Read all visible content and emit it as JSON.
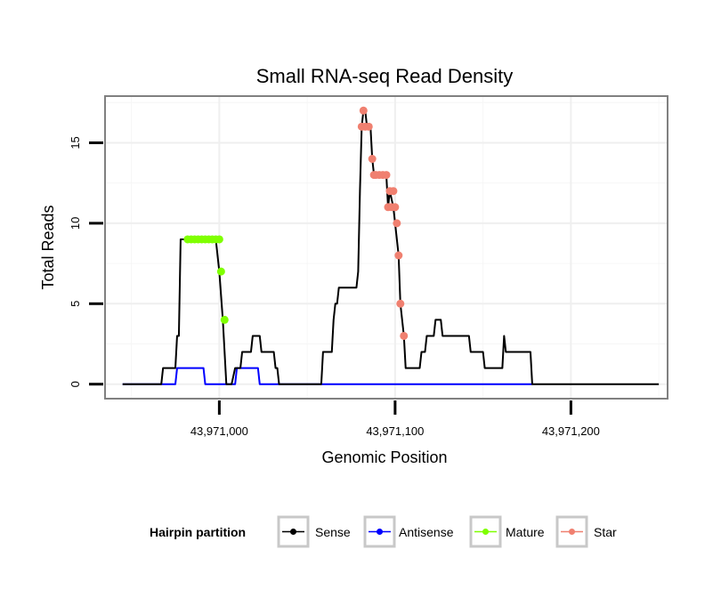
{
  "chart_data": {
    "type": "line",
    "title": "Small RNA-seq Read Density",
    "xlabel": "Genomic Position",
    "ylabel": "Total Reads",
    "xlim": [
      43970935,
      43971255
    ],
    "ylim": [
      -0.9,
      17.9
    ],
    "x_ticks": [
      {
        "value": 43971000,
        "label": "43,971,000"
      },
      {
        "value": 43971100,
        "label": "43,971,100"
      },
      {
        "value": 43971200,
        "label": "43,971,200"
      }
    ],
    "y_ticks": [
      {
        "value": 0,
        "label": "0"
      },
      {
        "value": 5,
        "label": "5"
      },
      {
        "value": 10,
        "label": "10"
      },
      {
        "value": 15,
        "label": "15"
      }
    ],
    "grid": true,
    "legend": {
      "title": "Hairpin partition",
      "position": "bottom",
      "entries": [
        {
          "name": "Sense",
          "color": "#000000"
        },
        {
          "name": "Antisense",
          "color": "#0000ff"
        },
        {
          "name": "Mature",
          "color": "#7fff00"
        },
        {
          "name": "Star",
          "color": "#f08070"
        }
      ]
    },
    "series": [
      {
        "name": "Sense",
        "color": "#000000",
        "points": [
          [
            43970945,
            0
          ],
          [
            43970967,
            0
          ],
          [
            43970968,
            1
          ],
          [
            43970975,
            1
          ],
          [
            43970976,
            3
          ],
          [
            43970977,
            3
          ],
          [
            43970978,
            9
          ],
          [
            43970998,
            9
          ],
          [
            43971000,
            7
          ],
          [
            43971002,
            4
          ],
          [
            43971004,
            0
          ],
          [
            43971007,
            0
          ],
          [
            43971009,
            1
          ],
          [
            43971012,
            1
          ],
          [
            43971013,
            2
          ],
          [
            43971018,
            2
          ],
          [
            43971019,
            3
          ],
          [
            43971023,
            3
          ],
          [
            43971024,
            2
          ],
          [
            43971031,
            2
          ],
          [
            43971032,
            1
          ],
          [
            43971033,
            1
          ],
          [
            43971034,
            0
          ],
          [
            43971058,
            0
          ],
          [
            43971059,
            2
          ],
          [
            43971064,
            2
          ],
          [
            43971065,
            4
          ],
          [
            43971066,
            5
          ],
          [
            43971067,
            5
          ],
          [
            43971068,
            6
          ],
          [
            43971078,
            6
          ],
          [
            43971079,
            7
          ],
          [
            43971080,
            12
          ],
          [
            43971081,
            16
          ],
          [
            43971082,
            17
          ],
          [
            43971083,
            17
          ],
          [
            43971084,
            16
          ],
          [
            43971086,
            16
          ],
          [
            43971087,
            14
          ],
          [
            43971088,
            13
          ],
          [
            43971095,
            13
          ],
          [
            43971096,
            11
          ],
          [
            43971097,
            12
          ],
          [
            43971099,
            11
          ],
          [
            43971100,
            10
          ],
          [
            43971102,
            8
          ],
          [
            43971103,
            5
          ],
          [
            43971105,
            3
          ],
          [
            43971106,
            1
          ],
          [
            43971114,
            1
          ],
          [
            43971115,
            2
          ],
          [
            43971117,
            2
          ],
          [
            43971118,
            3
          ],
          [
            43971122,
            3
          ],
          [
            43971123,
            4
          ],
          [
            43971126,
            4
          ],
          [
            43971127,
            3
          ],
          [
            43971142,
            3
          ],
          [
            43971143,
            2
          ],
          [
            43971150,
            2
          ],
          [
            43971151,
            1
          ],
          [
            43971161,
            1
          ],
          [
            43971162,
            3
          ],
          [
            43971163,
            2
          ],
          [
            43971177,
            2
          ],
          [
            43971178,
            0
          ],
          [
            43971250,
            0
          ]
        ]
      },
      {
        "name": "Antisense",
        "color": "#0000ff",
        "points": [
          [
            43970945,
            0
          ],
          [
            43970975,
            0
          ],
          [
            43970976,
            1
          ],
          [
            43970991,
            1
          ],
          [
            43970992,
            0
          ],
          [
            43971009,
            0
          ],
          [
            43971010,
            1
          ],
          [
            43971022,
            1
          ],
          [
            43971023,
            0
          ],
          [
            43971178,
            0
          ]
        ]
      },
      {
        "name": "Mature",
        "color": "#7fff00",
        "points": [
          [
            43970982,
            9
          ],
          [
            43970984,
            9
          ],
          [
            43970986,
            9
          ],
          [
            43970988,
            9
          ],
          [
            43970990,
            9
          ],
          [
            43970992,
            9
          ],
          [
            43970994,
            9
          ],
          [
            43970996,
            9
          ],
          [
            43970998,
            9
          ],
          [
            43971000,
            9
          ],
          [
            43971001,
            7
          ],
          [
            43971003,
            4
          ]
        ]
      },
      {
        "name": "Star",
        "color": "#f08070",
        "points": [
          [
            43971081,
            16
          ],
          [
            43971082,
            17
          ],
          [
            43971083,
            16
          ],
          [
            43971085,
            16
          ],
          [
            43971087,
            14
          ],
          [
            43971088,
            13
          ],
          [
            43971089,
            13
          ],
          [
            43971091,
            13
          ],
          [
            43971093,
            13
          ],
          [
            43971095,
            13
          ],
          [
            43971096,
            11
          ],
          [
            43971097,
            12
          ],
          [
            43971098,
            11
          ],
          [
            43971099,
            12
          ],
          [
            43971100,
            11
          ],
          [
            43971101,
            10
          ],
          [
            43971102,
            8
          ],
          [
            43971103,
            5
          ],
          [
            43971105,
            3
          ]
        ]
      }
    ]
  }
}
